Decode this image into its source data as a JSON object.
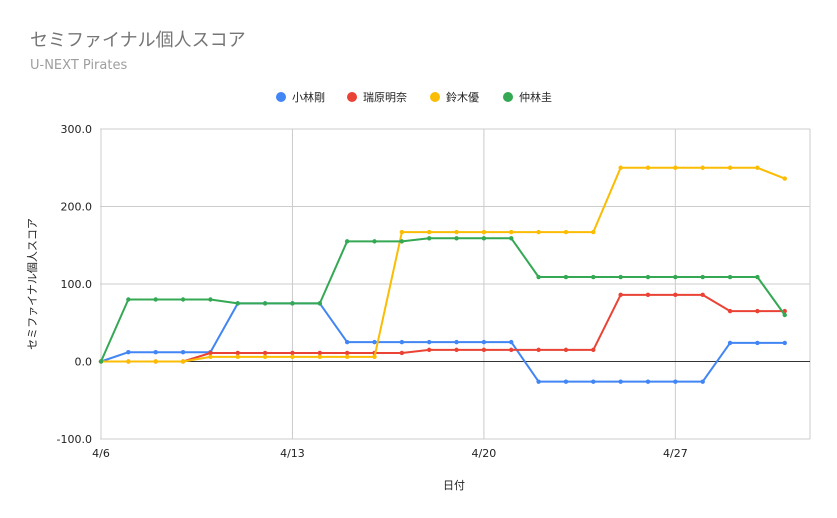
{
  "chart_data": {
    "type": "line",
    "title": "セミファイナル個人スコア",
    "subtitle": "U-NEXT Pirates",
    "xlabel": "日付",
    "ylabel": "セミファイナル個人スコア",
    "ylim": [
      -100,
      300
    ],
    "yticks": [
      "300.0",
      "200.0",
      "100.0",
      "0.0",
      "-100.0"
    ],
    "xticks": [
      "4/6",
      "4/13",
      "4/20",
      "4/27"
    ],
    "x": [
      "4/6",
      "4/7",
      "4/8",
      "4/9",
      "4/10",
      "4/11",
      "4/12",
      "4/13",
      "4/14",
      "4/15",
      "4/16",
      "4/17",
      "4/18",
      "4/19",
      "4/20",
      "4/21",
      "4/22",
      "4/23",
      "4/24",
      "4/25",
      "4/26",
      "4/27",
      "4/28",
      "4/29",
      "4/30",
      "5/1"
    ],
    "grid": true,
    "legend_position": "top",
    "series": [
      {
        "name": "小林剛",
        "color": "#4285f4",
        "values": [
          0,
          12,
          12,
          12,
          12,
          75,
          75,
          75,
          75,
          25,
          25,
          25,
          25,
          25,
          25,
          25,
          -26,
          -26,
          -26,
          -26,
          -26,
          -26,
          -26,
          24,
          24,
          24
        ]
      },
      {
        "name": "瑞原明奈",
        "color": "#ea4335",
        "values": [
          0,
          0,
          0,
          0,
          11,
          11,
          11,
          11,
          11,
          11,
          11,
          11,
          15,
          15,
          15,
          15,
          15,
          15,
          15,
          86,
          86,
          86,
          86,
          65,
          65,
          65
        ]
      },
      {
        "name": "鈴木優",
        "color": "#fbbc04",
        "values": [
          0,
          0,
          0,
          0,
          6,
          6,
          6,
          6,
          6,
          6,
          6,
          167,
          167,
          167,
          167,
          167,
          167,
          167,
          167,
          250,
          250,
          250,
          250,
          250,
          250,
          236
        ]
      },
      {
        "name": "仲林圭",
        "color": "#34a853",
        "values": [
          0,
          80,
          80,
          80,
          80,
          75,
          75,
          75,
          75,
          155,
          155,
          155,
          159,
          159,
          159,
          159,
          109,
          109,
          109,
          109,
          109,
          109,
          109,
          109,
          109,
          60
        ]
      }
    ]
  }
}
